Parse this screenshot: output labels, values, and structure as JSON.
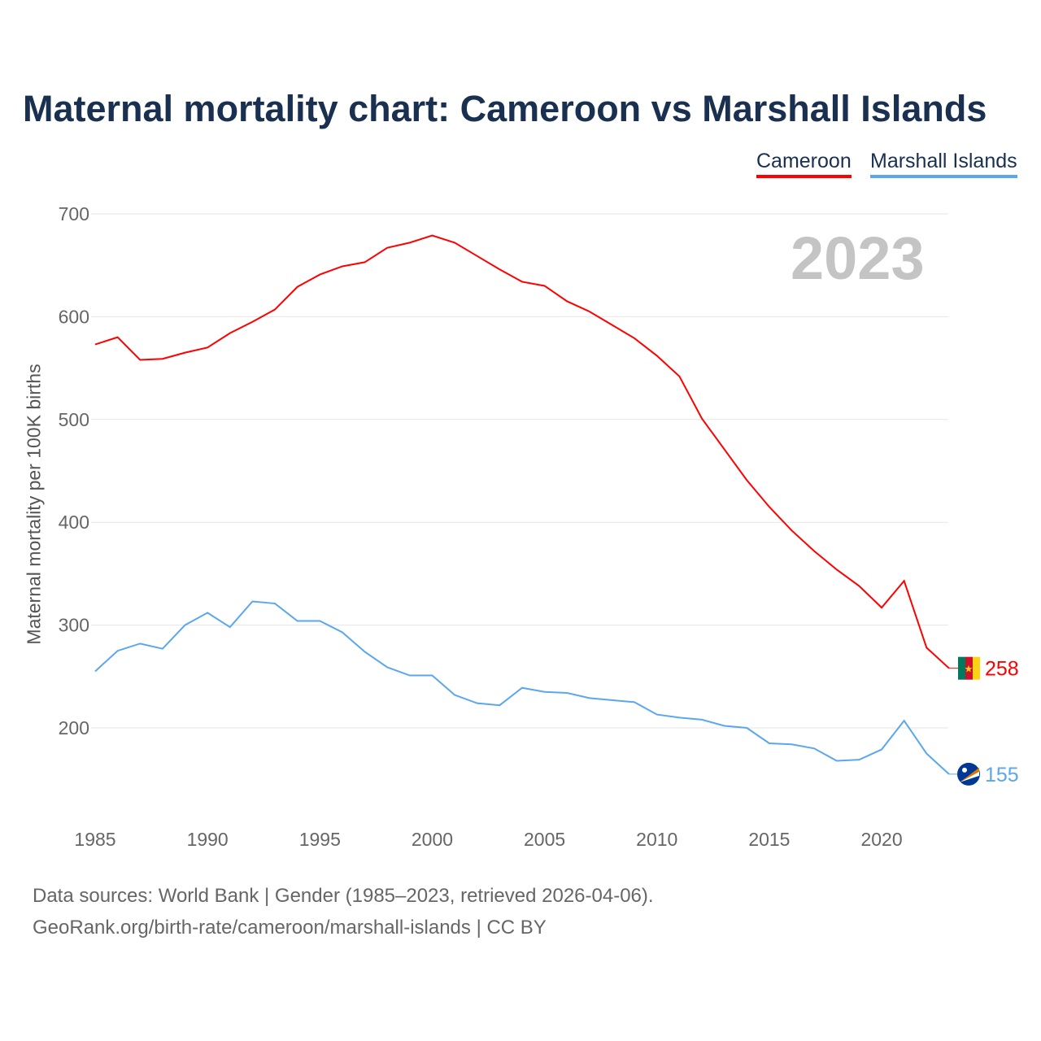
{
  "chart_data": {
    "type": "line",
    "title": "Maternal mortality chart: Cameroon vs Marshall Islands",
    "ylabel": "Maternal mortality per 100K births",
    "xlabel": "",
    "year_label": "2023",
    "x": [
      1985,
      1986,
      1987,
      1988,
      1989,
      1990,
      1991,
      1992,
      1993,
      1994,
      1995,
      1996,
      1997,
      1998,
      1999,
      2000,
      2001,
      2002,
      2003,
      2004,
      2005,
      2006,
      2007,
      2008,
      2009,
      2010,
      2011,
      2012,
      2013,
      2014,
      2015,
      2016,
      2017,
      2018,
      2019,
      2020,
      2021,
      2022,
      2023
    ],
    "xticks": [
      1985,
      1990,
      1995,
      2000,
      2005,
      2010,
      2015,
      2020
    ],
    "yticks": [
      200,
      300,
      400,
      500,
      600,
      700
    ],
    "xlim": [
      1985,
      2023
    ],
    "ylim": [
      130,
      700
    ],
    "grid": true,
    "legend": "top-right",
    "series": [
      {
        "name": "Cameroon",
        "color": "#ff0000",
        "end_label": "258",
        "values": [
          573,
          580,
          558,
          559,
          565,
          570,
          584,
          595,
          607,
          629,
          641,
          649,
          653,
          667,
          672,
          679,
          672,
          659,
          646,
          634,
          630,
          615,
          605,
          592,
          579,
          562,
          542,
          501,
          471,
          441,
          415,
          392,
          372,
          354,
          338,
          317,
          343,
          278,
          258
        ]
      },
      {
        "name": "Marshall Islands",
        "color": "#5aa7ef",
        "end_label": "155",
        "values": [
          255,
          275,
          282,
          277,
          300,
          312,
          298,
          323,
          321,
          304,
          304,
          293,
          274,
          259,
          251,
          251,
          232,
          224,
          222,
          239,
          235,
          234,
          229,
          227,
          225,
          213,
          210,
          208,
          202,
          200,
          185,
          184,
          180,
          168,
          169,
          179,
          207,
          175,
          155
        ]
      }
    ]
  },
  "footer": {
    "line1": "Data sources: World Bank | Gender (1985–2023, retrieved 2026-04-06).",
    "line2": "GeoRank.org/birth-rate/cameroon/marshall-islands | CC BY"
  }
}
